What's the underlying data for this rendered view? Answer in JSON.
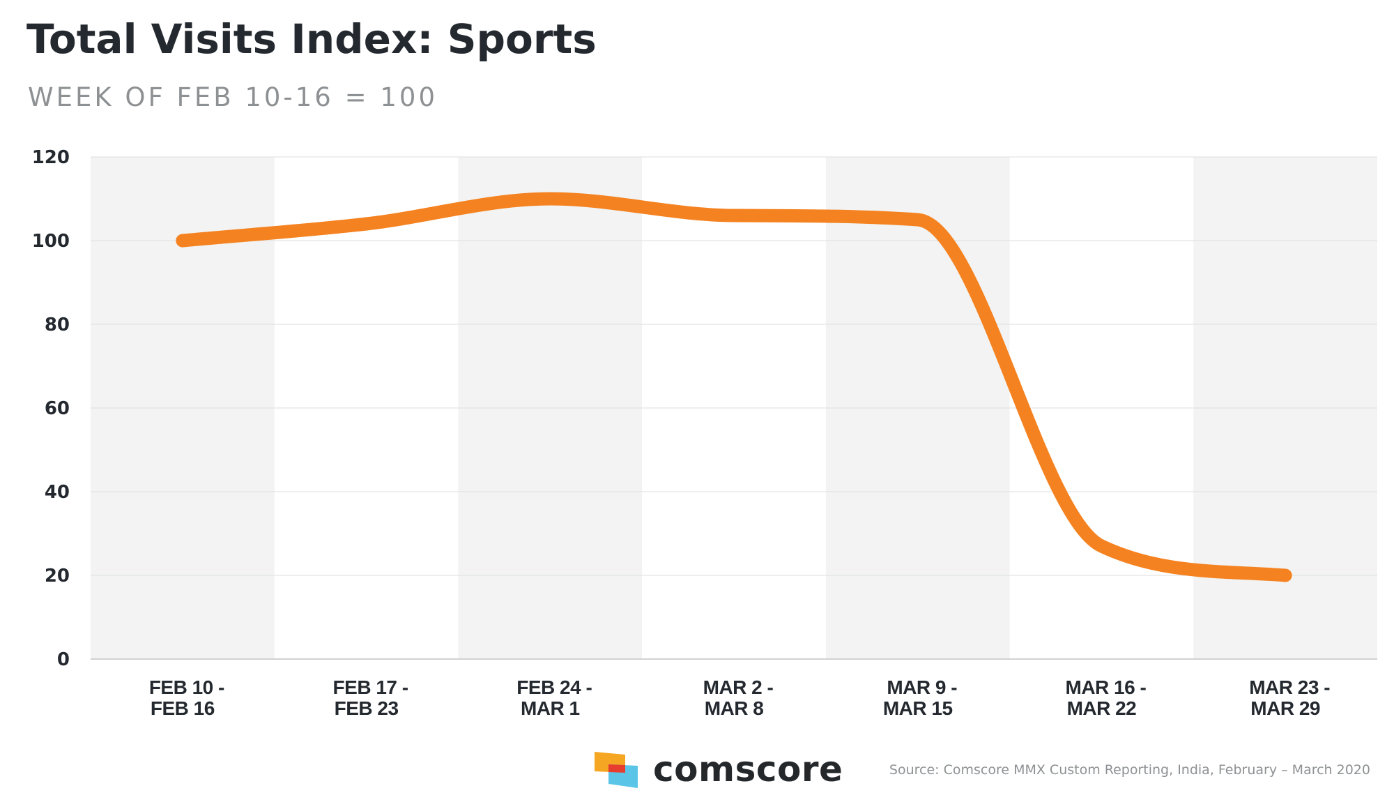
{
  "header": {
    "title": "Total Visits Index: Sports",
    "subtitle": "WEEK OF FEB 10-16 = 100"
  },
  "chart_data": {
    "type": "line",
    "title": "Total Visits Index: Sports",
    "subtitle": "WEEK OF FEB 10-16 = 100",
    "categories": [
      [
        "FEB 10 -",
        "FEB 16"
      ],
      [
        "FEB 17 -",
        "FEB 23"
      ],
      [
        "FEB 24 -",
        "MAR 1"
      ],
      [
        "MAR 2 -",
        "MAR 8"
      ],
      [
        "MAR 9 -",
        "MAR 15"
      ],
      [
        "MAR 16 -",
        "MAR 22"
      ],
      [
        "MAR 23 -",
        "MAR 29"
      ]
    ],
    "series": [
      {
        "values": [
          100,
          104,
          110,
          106,
          105,
          27,
          20
        ]
      }
    ],
    "ylim": [
      0,
      120
    ],
    "yticks": [
      0,
      20,
      40,
      60,
      80,
      100,
      120
    ],
    "grid": true,
    "smooth": true,
    "colors": {
      "line": "#f58220",
      "band": "#f2f3f2",
      "grid": "#e3e4e4",
      "axis": "#d0d2d3",
      "tick_text": "#24292f"
    }
  },
  "footer": {
    "brand": "comscore",
    "source": "Source: Comscore MMX Custom Reporting, India, February – March 2020",
    "logo_colors": [
      "#f5a623",
      "#e63d2f",
      "#5bc5e8"
    ]
  }
}
